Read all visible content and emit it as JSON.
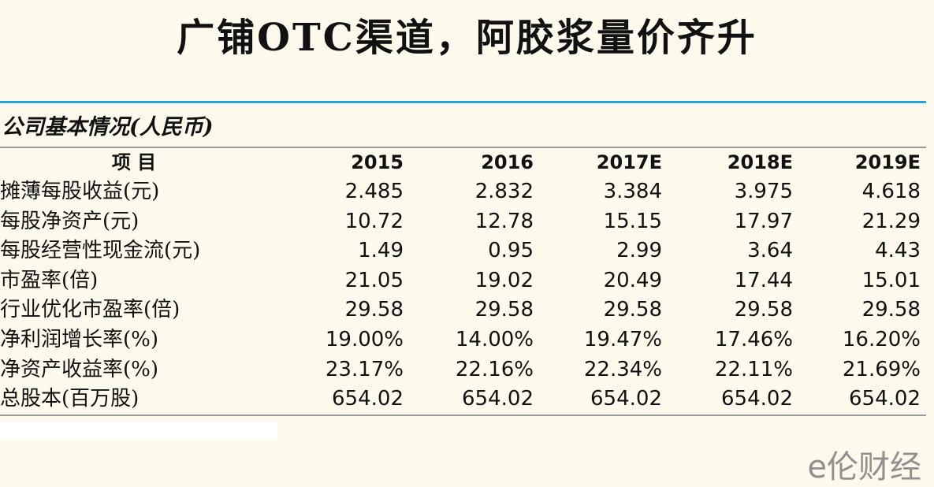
{
  "header": {
    "title": "广铺OTC渠道，阿胶浆量价齐升"
  },
  "table": {
    "caption": "公司基本情况(人民币)",
    "columns": [
      "项 目",
      "2015",
      "2016",
      "2017E",
      "2018E",
      "2019E"
    ],
    "rows": [
      [
        "摊薄每股收益(元)",
        "2.485",
        "2.832",
        "3.384",
        "3.975",
        "4.618"
      ],
      [
        "每股净资产(元)",
        "10.72",
        "12.78",
        "15.15",
        "17.97",
        "21.29"
      ],
      [
        "每股经营性现金流(元)",
        "1.49",
        "0.95",
        "2.99",
        "3.64",
        "4.43"
      ],
      [
        "市盈率(倍)",
        "21.05",
        "19.02",
        "20.49",
        "17.44",
        "15.01"
      ],
      [
        "行业优化市盈率(倍)",
        "29.58",
        "29.58",
        "29.58",
        "29.58",
        "29.58"
      ],
      [
        "净利润增长率(%)",
        "19.00%",
        "14.00%",
        "19.47%",
        "17.46%",
        "16.20%"
      ],
      [
        "净资产收益率(%)",
        "23.17%",
        "22.16%",
        "22.34%",
        "22.11%",
        "21.69%"
      ],
      [
        "总股本(百万股)",
        "654.02",
        "654.02",
        "654.02",
        "654.02",
        "654.02"
      ]
    ]
  },
  "watermark": "e伦财经"
}
